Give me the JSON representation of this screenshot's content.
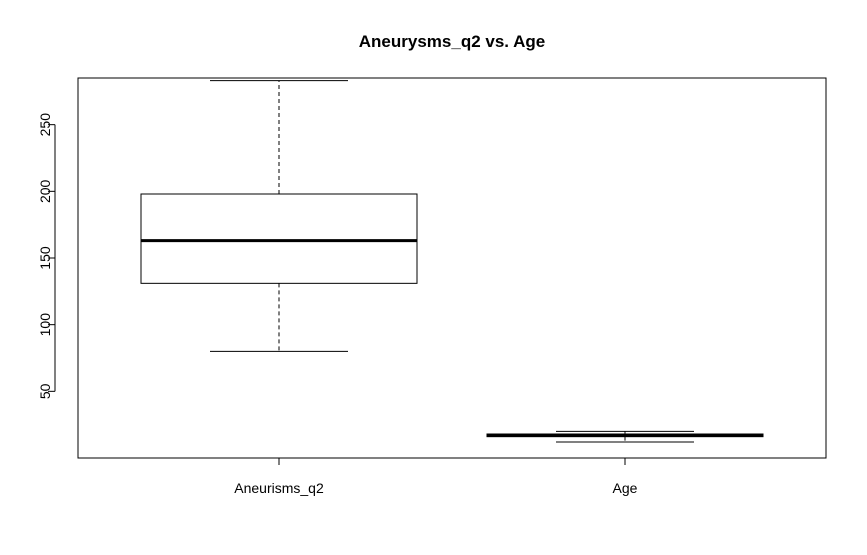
{
  "chart_data": {
    "type": "boxplot",
    "title": "Aneurysms_q2 vs. Age",
    "xlabel": "",
    "ylabel": "",
    "ylim": [
      0,
      285
    ],
    "y_ticks": [
      50,
      100,
      150,
      200,
      250
    ],
    "grid": false,
    "categories": [
      "Aneurisms_q2",
      "Age"
    ],
    "boxes": [
      {
        "category": "Aneurisms_q2",
        "whisker_low": 80,
        "q1": 131,
        "median": 163,
        "q3": 198,
        "whisker_high": 283
      },
      {
        "category": "Age",
        "whisker_low": 12,
        "q1": 16,
        "median": 17,
        "q3": 18,
        "whisker_high": 20
      }
    ]
  }
}
